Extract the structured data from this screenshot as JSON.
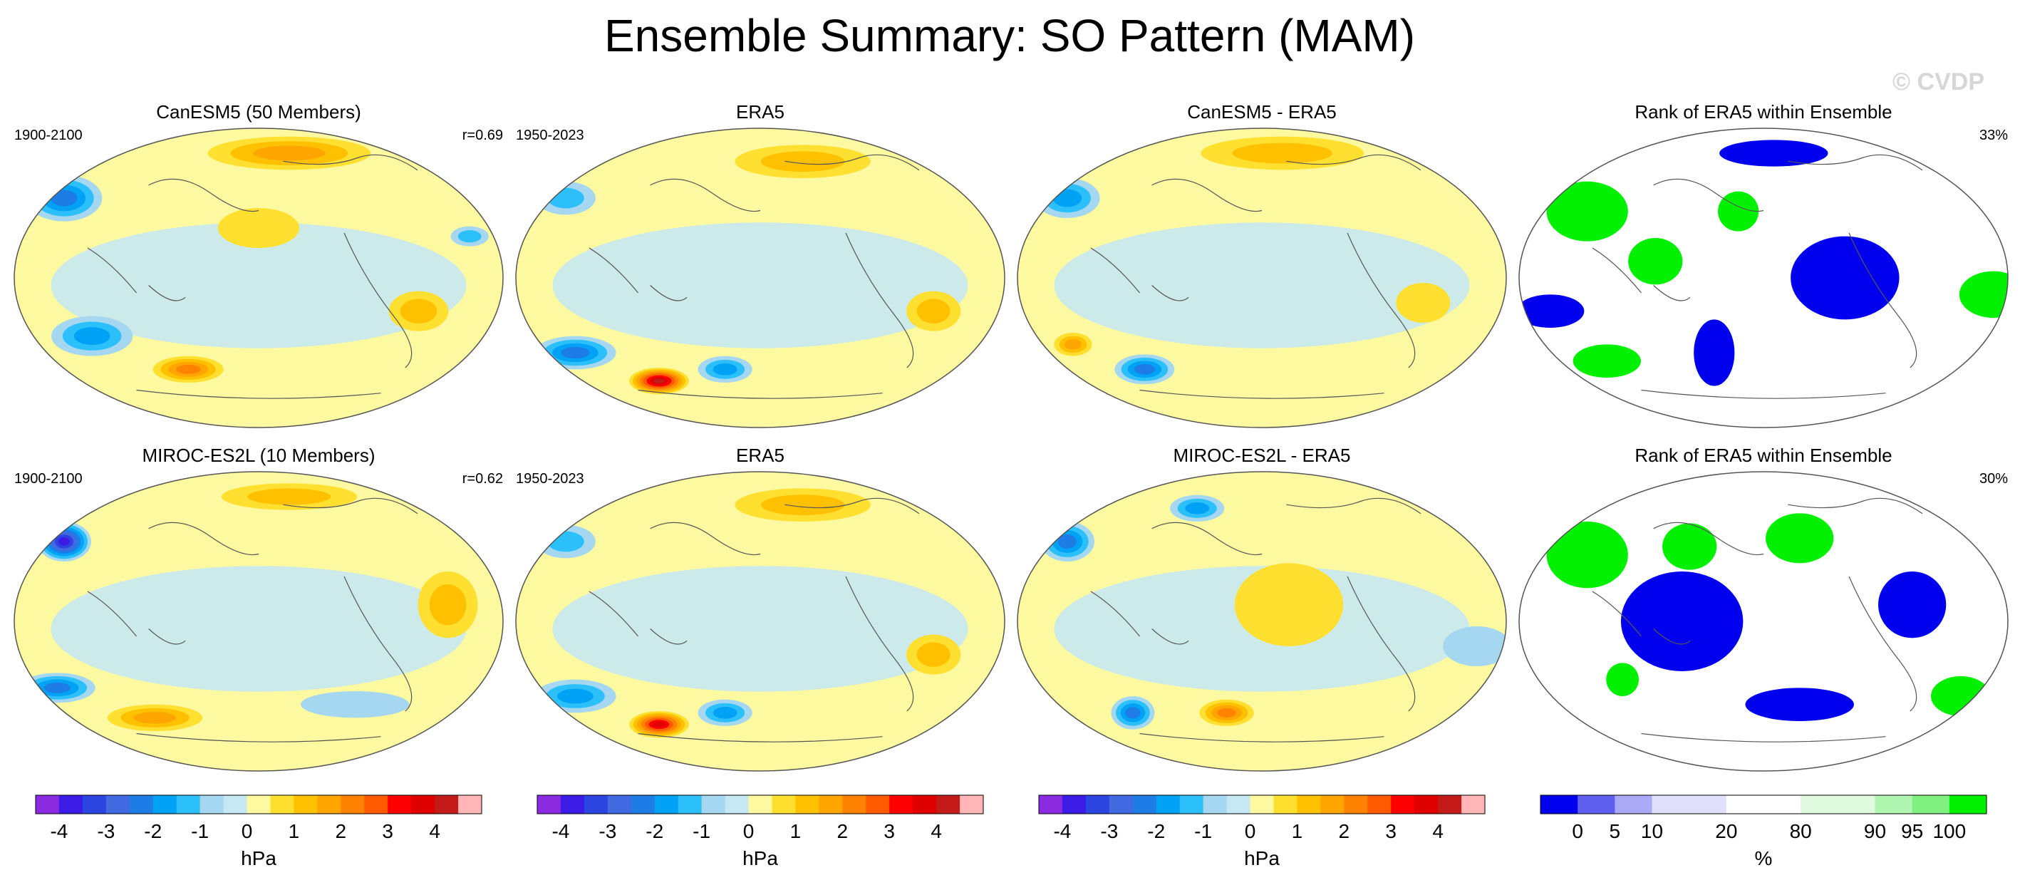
{
  "title": "Ensemble Summary: SO Pattern (MAM)",
  "watermark": "© CVDP",
  "panels": [
    {
      "title": "CanESM5 (50 Members)",
      "left_label": "1900-2100",
      "right_label": "r=0.69",
      "kind": "slp",
      "anomalies": [
        {
          "lon": -160,
          "lat": 48,
          "value": -2.2,
          "rx": 28,
          "ry": 14
        },
        {
          "lon": 160,
          "lat": 25,
          "value": -0.8,
          "rx": 14,
          "ry": 6
        },
        {
          "lon": -130,
          "lat": -35,
          "value": -1.6,
          "rx": 30,
          "ry": 12
        },
        {
          "lon": -60,
          "lat": -55,
          "value": 1.8,
          "rx": 26,
          "ry": 8
        },
        {
          "lon": 30,
          "lat": 75,
          "value": 1.3,
          "rx": 60,
          "ry": 10
        },
        {
          "lon": 120,
          "lat": -20,
          "value": 0.9,
          "rx": 22,
          "ry": 12
        },
        {
          "lon": 0,
          "lat": 30,
          "value": 0.6,
          "rx": 30,
          "ry": 12
        }
      ]
    },
    {
      "title": "ERA5",
      "left_label": "1950-2023",
      "right_label": "",
      "kind": "slp",
      "anomalies": [
        {
          "lon": -90,
          "lat": -62,
          "value": 4.0,
          "rx": 22,
          "ry": 8
        },
        {
          "lon": -150,
          "lat": -45,
          "value": -1.8,
          "rx": 30,
          "ry": 10
        },
        {
          "lon": -30,
          "lat": -55,
          "value": -1.7,
          "rx": 20,
          "ry": 8
        },
        {
          "lon": -160,
          "lat": 48,
          "value": -1.0,
          "rx": 22,
          "ry": 10
        },
        {
          "lon": 130,
          "lat": -20,
          "value": 1.2,
          "rx": 20,
          "ry": 12
        },
        {
          "lon": 40,
          "lat": 70,
          "value": 0.9,
          "rx": 50,
          "ry": 10
        }
      ]
    },
    {
      "title": "CanESM5 - ERA5",
      "left_label": "",
      "right_label": "",
      "kind": "slp",
      "anomalies": [
        {
          "lon": -160,
          "lat": 48,
          "value": -1.6,
          "rx": 24,
          "ry": 12
        },
        {
          "lon": -100,
          "lat": -55,
          "value": -1.8,
          "rx": 22,
          "ry": 9
        },
        {
          "lon": -150,
          "lat": -40,
          "value": 1.4,
          "rx": 14,
          "ry": 7
        },
        {
          "lon": 20,
          "lat": 75,
          "value": 1.1,
          "rx": 60,
          "ry": 10
        },
        {
          "lon": 120,
          "lat": -15,
          "value": 0.6,
          "rx": 20,
          "ry": 12
        }
      ]
    },
    {
      "title": "Rank of ERA5 within Ensemble",
      "left_label": "",
      "right_label": "33%",
      "kind": "rank",
      "anomalies": [
        {
          "lon": -140,
          "lat": 40,
          "value": 95,
          "rx": 30,
          "ry": 18
        },
        {
          "lon": 170,
          "lat": -10,
          "value": 95,
          "rx": 25,
          "ry": 14
        },
        {
          "lon": -80,
          "lat": 10,
          "value": 95,
          "rx": 20,
          "ry": 14
        },
        {
          "lon": -20,
          "lat": 40,
          "value": 95,
          "rx": 15,
          "ry": 12
        },
        {
          "lon": -130,
          "lat": -50,
          "value": 95,
          "rx": 25,
          "ry": 10
        },
        {
          "lon": 60,
          "lat": 0,
          "value": 2,
          "rx": 40,
          "ry": 25
        },
        {
          "lon": -160,
          "lat": -20,
          "value": 2,
          "rx": 25,
          "ry": 10
        },
        {
          "lon": -40,
          "lat": -45,
          "value": 2,
          "rx": 15,
          "ry": 20
        },
        {
          "lon": 10,
          "lat": 75,
          "value": 2,
          "rx": 40,
          "ry": 8
        },
        {
          "lon": 150,
          "lat": 45,
          "value": 50,
          "rx": 18,
          "ry": 12
        }
      ]
    },
    {
      "title": "MIROC-ES2L (10 Members)",
      "left_label": "1900-2100",
      "right_label": "r=0.62",
      "kind": "slp",
      "anomalies": [
        {
          "lon": -160,
          "lat": 48,
          "value": -3.3,
          "rx": 20,
          "ry": 12
        },
        {
          "lon": -160,
          "lat": -40,
          "value": -1.8,
          "rx": 28,
          "ry": 9
        },
        {
          "lon": -90,
          "lat": -58,
          "value": 1.3,
          "rx": 35,
          "ry": 8
        },
        {
          "lon": 140,
          "lat": 10,
          "value": 1.0,
          "rx": 22,
          "ry": 20
        },
        {
          "lon": 30,
          "lat": 75,
          "value": 0.8,
          "rx": 50,
          "ry": 8
        },
        {
          "lon": 80,
          "lat": -50,
          "value": -0.6,
          "rx": 40,
          "ry": 8
        }
      ]
    },
    {
      "title": "ERA5",
      "left_label": "1950-2023",
      "right_label": "",
      "kind": "slp",
      "anomalies": [
        {
          "lon": -90,
          "lat": -62,
          "value": 3.3,
          "rx": 22,
          "ry": 8
        },
        {
          "lon": -150,
          "lat": -45,
          "value": -1.6,
          "rx": 30,
          "ry": 10
        },
        {
          "lon": -30,
          "lat": -55,
          "value": -1.3,
          "rx": 20,
          "ry": 8
        },
        {
          "lon": -160,
          "lat": 48,
          "value": -1.1,
          "rx": 22,
          "ry": 10
        },
        {
          "lon": 130,
          "lat": -20,
          "value": 1.0,
          "rx": 20,
          "ry": 12
        },
        {
          "lon": 40,
          "lat": 70,
          "value": 0.8,
          "rx": 50,
          "ry": 10
        }
      ]
    },
    {
      "title": "MIROC-ES2L - ERA5",
      "left_label": "",
      "right_label": "",
      "kind": "slp",
      "anomalies": [
        {
          "lon": -160,
          "lat": 48,
          "value": -2.1,
          "rx": 20,
          "ry": 12
        },
        {
          "lon": -60,
          "lat": 68,
          "value": -1.3,
          "rx": 20,
          "ry": 8
        },
        {
          "lon": -110,
          "lat": -55,
          "value": -2.0,
          "rx": 16,
          "ry": 10
        },
        {
          "lon": -30,
          "lat": -55,
          "value": 1.8,
          "rx": 20,
          "ry": 8
        },
        {
          "lon": 20,
          "lat": 10,
          "value": 0.6,
          "rx": 40,
          "ry": 25
        },
        {
          "lon": 160,
          "lat": -15,
          "value": -0.6,
          "rx": 25,
          "ry": 12
        }
      ]
    },
    {
      "title": "Rank of ERA5 within Ensemble",
      "left_label": "",
      "right_label": "30%",
      "kind": "rank",
      "anomalies": [
        {
          "lon": -140,
          "lat": 40,
          "value": 95,
          "rx": 30,
          "ry": 20
        },
        {
          "lon": 160,
          "lat": -45,
          "value": 95,
          "rx": 22,
          "ry": 12
        },
        {
          "lon": -60,
          "lat": 45,
          "value": 95,
          "rx": 20,
          "ry": 14
        },
        {
          "lon": 30,
          "lat": 50,
          "value": 95,
          "rx": 25,
          "ry": 15
        },
        {
          "lon": -110,
          "lat": -35,
          "value": 95,
          "rx": 12,
          "ry": 10
        },
        {
          "lon": -60,
          "lat": 0,
          "value": 2,
          "rx": 45,
          "ry": 30
        },
        {
          "lon": 110,
          "lat": 10,
          "value": 2,
          "rx": 25,
          "ry": 20
        },
        {
          "lon": 30,
          "lat": -50,
          "value": 2,
          "rx": 40,
          "ry": 10
        },
        {
          "lon": 160,
          "lat": 50,
          "value": 50,
          "rx": 14,
          "ry": 10
        }
      ]
    }
  ],
  "colorbars": [
    {
      "kind": "slp",
      "unit": "hPa",
      "colors": [
        "#8a2be2",
        "#3c1be6",
        "#2c45e0",
        "#4169e1",
        "#1e7ce6",
        "#00a2f5",
        "#2cc0fa",
        "#a5d8f0",
        "#c6e8f2",
        "#fcf9a0",
        "#ffe030",
        "#ffc000",
        "#ffa500",
        "#ff8200",
        "#ff5a00",
        "#ff0000",
        "#e00000",
        "#c41a1a",
        "#ffb6b6"
      ],
      "ticks": [
        "-4",
        "-3",
        "-2",
        "-1",
        "0",
        "1",
        "2",
        "3",
        "4"
      ]
    },
    {
      "kind": "slp",
      "unit": "hPa",
      "colors": [
        "#8a2be2",
        "#3c1be6",
        "#2c45e0",
        "#4169e1",
        "#1e7ce6",
        "#00a2f5",
        "#2cc0fa",
        "#a5d8f0",
        "#c6e8f2",
        "#fcf9a0",
        "#ffe030",
        "#ffc000",
        "#ffa500",
        "#ff8200",
        "#ff5a00",
        "#ff0000",
        "#e00000",
        "#c41a1a",
        "#ffb6b6"
      ],
      "ticks": [
        "-4",
        "-3",
        "-2",
        "-1",
        "0",
        "1",
        "2",
        "3",
        "4"
      ]
    },
    {
      "kind": "slp",
      "unit": "hPa",
      "colors": [
        "#8a2be2",
        "#3c1be6",
        "#2c45e0",
        "#4169e1",
        "#1e7ce6",
        "#00a2f5",
        "#2cc0fa",
        "#a5d8f0",
        "#c6e8f2",
        "#fcf9a0",
        "#ffe030",
        "#ffc000",
        "#ffa500",
        "#ff8200",
        "#ff5a00",
        "#ff0000",
        "#e00000",
        "#c41a1a",
        "#ffb6b6"
      ],
      "ticks": [
        "-4",
        "-3",
        "-2",
        "-1",
        "0",
        "1",
        "2",
        "3",
        "4"
      ]
    },
    {
      "kind": "rank",
      "unit": "%",
      "colors": [
        "#0000ee",
        "#6060f0",
        "#a9a9f5",
        "#e0e0fa",
        "#e0e0fa",
        "#ffffff",
        "#ffffff",
        "#e0fae0",
        "#e0fae0",
        "#b0f5b0",
        "#80f080",
        "#00f000"
      ],
      "ticks": [
        "0",
        "5",
        "10",
        "20",
        "80",
        "90",
        "95",
        "100"
      ]
    }
  ],
  "chart_data": [
    {
      "type": "heatmap",
      "title": "CanESM5 (50 Members)",
      "period": "1900-2100",
      "pattern_correlation": 0.69,
      "unit": "hPa",
      "levels": [
        -4,
        -3,
        -2,
        -1,
        0,
        1,
        2,
        3,
        4
      ]
    },
    {
      "type": "heatmap",
      "title": "ERA5",
      "period": "1950-2023",
      "unit": "hPa",
      "levels": [
        -4,
        -3,
        -2,
        -1,
        0,
        1,
        2,
        3,
        4
      ]
    },
    {
      "type": "heatmap",
      "title": "CanESM5 - ERA5",
      "unit": "hPa",
      "levels": [
        -4,
        -3,
        -2,
        -1,
        0,
        1,
        2,
        3,
        4
      ]
    },
    {
      "type": "heatmap",
      "title": "Rank of ERA5 within Ensemble",
      "summary": "33%",
      "unit": "%",
      "levels": [
        0,
        5,
        10,
        20,
        80,
        90,
        95,
        100
      ]
    },
    {
      "type": "heatmap",
      "title": "MIROC-ES2L (10 Members)",
      "period": "1900-2100",
      "pattern_correlation": 0.62,
      "unit": "hPa",
      "levels": [
        -4,
        -3,
        -2,
        -1,
        0,
        1,
        2,
        3,
        4
      ]
    },
    {
      "type": "heatmap",
      "title": "ERA5",
      "period": "1950-2023",
      "unit": "hPa",
      "levels": [
        -4,
        -3,
        -2,
        -1,
        0,
        1,
        2,
        3,
        4
      ]
    },
    {
      "type": "heatmap",
      "title": "MIROC-ES2L - ERA5",
      "unit": "hPa",
      "levels": [
        -4,
        -3,
        -2,
        -1,
        0,
        1,
        2,
        3,
        4
      ]
    },
    {
      "type": "heatmap",
      "title": "Rank of ERA5 within Ensemble",
      "summary": "30%",
      "unit": "%",
      "levels": [
        0,
        5,
        10,
        20,
        80,
        90,
        95,
        100
      ]
    }
  ]
}
